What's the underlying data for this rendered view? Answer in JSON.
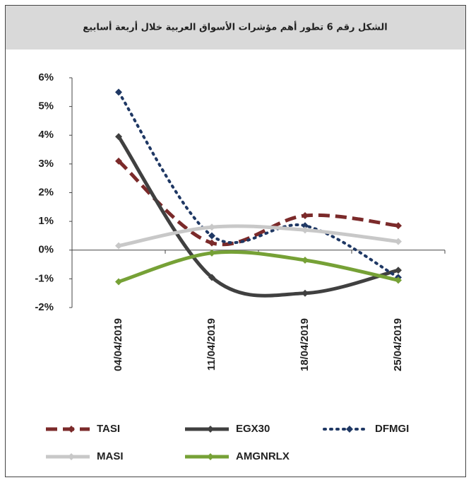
{
  "chart_data": {
    "type": "line",
    "title": "الشكل رقم 6 تطور أهم مؤشرات الأسواق العربية خلال أربعة أسابيع",
    "categories": [
      "04/04/2019",
      "11/04/2019",
      "18/04/2019",
      "25/04/2019"
    ],
    "series": [
      {
        "name": "TASI",
        "color": "#7b2a2a",
        "dash": "dashed",
        "values": [
          3.1,
          0.25,
          1.2,
          0.85
        ]
      },
      {
        "name": "EGX30",
        "color": "#404040",
        "dash": "solid",
        "values": [
          3.95,
          -0.95,
          -1.5,
          -0.7
        ]
      },
      {
        "name": "DFMGI",
        "color": "#1f3864",
        "dash": "dotted",
        "values": [
          5.5,
          0.5,
          0.85,
          -0.95
        ]
      },
      {
        "name": "MASI",
        "color": "#c8c8c8",
        "dash": "solid",
        "values": [
          0.15,
          0.8,
          0.7,
          0.3
        ]
      },
      {
        "name": "AMGNRLX",
        "color": "#76a136",
        "dash": "solid",
        "values": [
          -1.1,
          -0.1,
          -0.35,
          -1.05
        ]
      }
    ],
    "ylim": [
      -2,
      6
    ],
    "yticks": [
      {
        "value": -2,
        "label": "-2%"
      },
      {
        "value": -1,
        "label": "-1%"
      },
      {
        "value": 0,
        "label": "0%"
      },
      {
        "value": 1,
        "label": "1%"
      },
      {
        "value": 2,
        "label": "2%"
      },
      {
        "value": 3,
        "label": "3%"
      },
      {
        "value": 4,
        "label": "4%"
      },
      {
        "value": 5,
        "label": "5%"
      },
      {
        "value": 6,
        "label": "6%"
      }
    ],
    "smooth": true,
    "legend": "bottom"
  }
}
